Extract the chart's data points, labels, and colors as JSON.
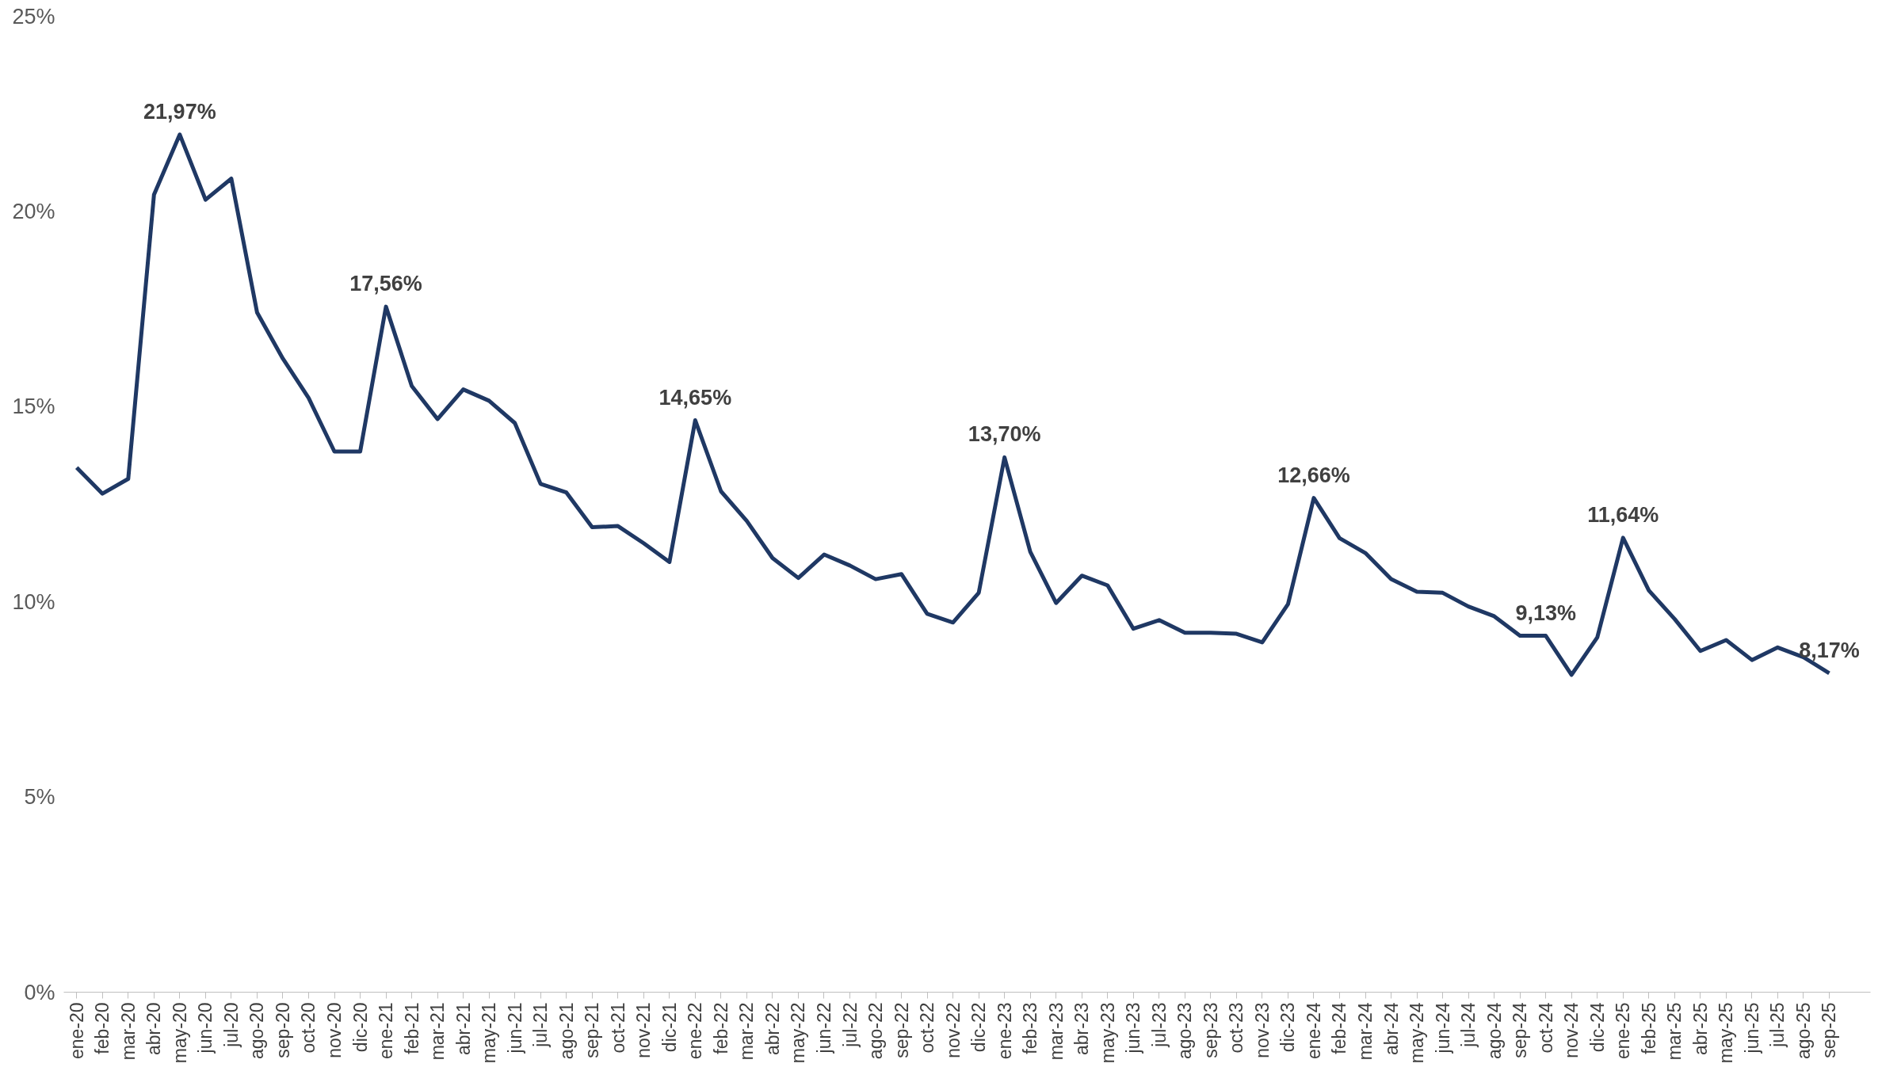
{
  "chart_data": {
    "type": "line",
    "categories": [
      "ene-20",
      "feb-20",
      "mar-20",
      "abr-20",
      "may-20",
      "jun-20",
      "jul-20",
      "ago-20",
      "sep-20",
      "oct-20",
      "nov-20",
      "dic-20",
      "ene-21",
      "feb-21",
      "mar-21",
      "abr-21",
      "may-21",
      "jun-21",
      "jul-21",
      "ago-21",
      "sep-21",
      "oct-21",
      "nov-21",
      "dic-21",
      "ene-22",
      "feb-22",
      "mar-22",
      "abr-22",
      "may-22",
      "jun-22",
      "jul-22",
      "ago-22",
      "sep-22",
      "oct-22",
      "nov-22",
      "dic-22",
      "ene-23",
      "feb-23",
      "mar-23",
      "abr-23",
      "may-23",
      "jun-23",
      "jul-23",
      "ago-23",
      "sep-23",
      "oct-23",
      "nov-23",
      "dic-23",
      "ene-24",
      "feb-24",
      "mar-24",
      "abr-24",
      "may-24",
      "jun-24",
      "jul-24",
      "ago-24",
      "sep-24",
      "oct-24",
      "nov-24",
      "dic-24",
      "ene-25",
      "feb-25",
      "mar-25",
      "abr-25",
      "may-25",
      "jun-25",
      "jul-25",
      "ago-25",
      "sep-25"
    ],
    "series": [
      {
        "color": "#1f3864",
        "values": [
          13.44,
          12.77,
          13.15,
          20.43,
          21.97,
          20.3,
          20.84,
          17.41,
          16.23,
          15.22,
          13.85,
          13.85,
          17.56,
          15.53,
          14.68,
          15.44,
          15.15,
          14.58,
          13.02,
          12.8,
          11.91,
          11.94,
          11.5,
          11.02,
          14.65,
          12.83,
          12.07,
          11.12,
          10.61,
          11.21,
          10.93,
          10.58,
          10.71,
          9.69,
          9.47,
          10.23,
          13.7,
          11.28,
          9.97,
          10.67,
          10.42,
          9.31,
          9.53,
          9.21,
          9.21,
          9.18,
          8.96,
          9.94,
          12.66,
          11.63,
          11.25,
          10.58,
          10.26,
          10.23,
          9.88,
          9.63,
          9.13,
          9.13,
          8.13,
          9.09,
          11.64,
          10.29,
          9.56,
          8.74,
          9.02,
          8.51,
          8.83,
          8.58,
          8.17
        ],
        "value_labels": [
          null,
          null,
          null,
          null,
          "21,97%",
          null,
          null,
          null,
          null,
          null,
          null,
          null,
          "17,56%",
          null,
          null,
          null,
          null,
          null,
          null,
          null,
          null,
          null,
          null,
          null,
          "14,65%",
          null,
          null,
          null,
          null,
          null,
          null,
          null,
          null,
          null,
          null,
          null,
          "13,70%",
          null,
          null,
          null,
          null,
          null,
          null,
          null,
          null,
          null,
          null,
          null,
          "12,66%",
          null,
          null,
          null,
          null,
          null,
          null,
          null,
          null,
          "9,13%",
          null,
          null,
          "11,64%",
          null,
          null,
          null,
          null,
          null,
          null,
          null,
          "8,17%"
        ]
      }
    ],
    "ylim": [
      0,
      25
    ],
    "yticks": [
      {
        "value": 0,
        "label": "0%"
      },
      {
        "value": 5,
        "label": "5%"
      },
      {
        "value": 10,
        "label": "10%"
      },
      {
        "value": 15,
        "label": "15%"
      },
      {
        "value": 20,
        "label": "20%"
      },
      {
        "value": 25,
        "label": "25%"
      }
    ],
    "grid": false,
    "marker": "none",
    "line_style": "solid"
  }
}
